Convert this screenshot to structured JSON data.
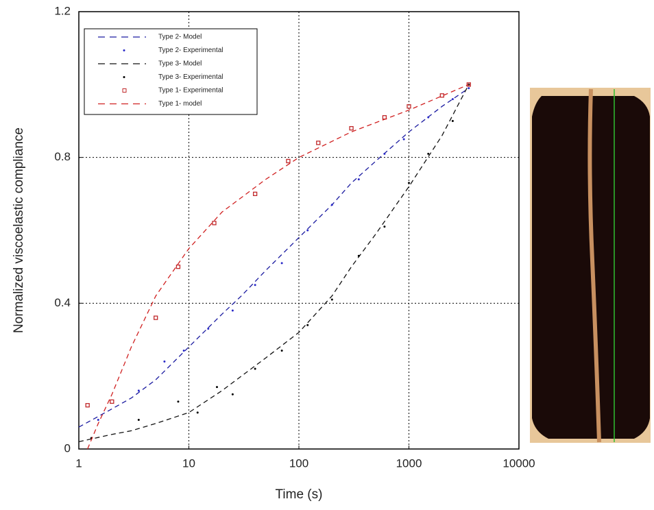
{
  "chart_data": {
    "type": "line",
    "x_label": "Time (s)",
    "y_label": "Normalized viscoelastic compliance",
    "xlim": [
      1,
      10000
    ],
    "xticks": [
      1,
      10,
      100,
      1000,
      10000
    ],
    "xscale": "log",
    "ylim": [
      0,
      1.2
    ],
    "yticks": [
      0,
      0.4,
      0.8,
      1.2
    ],
    "grid": true,
    "legend": "upper left",
    "series": [
      {
        "name": "Type 2- Model",
        "color": "#1a1aa0",
        "style": "dashed",
        "x": [
          1,
          2,
          3,
          5,
          10,
          20,
          30,
          50,
          100,
          200,
          300,
          500,
          1000,
          2000,
          3500
        ],
        "values": [
          0.06,
          0.11,
          0.14,
          0.19,
          0.28,
          0.37,
          0.42,
          0.49,
          0.58,
          0.67,
          0.73,
          0.79,
          0.87,
          0.94,
          0.99
        ]
      },
      {
        "name": "Type 2- Experimental",
        "color": "#2a2ac8",
        "style": "markers",
        "x": [
          1.5,
          3.5,
          6,
          9,
          15,
          25,
          40,
          70,
          120,
          200,
          350,
          600,
          900,
          1500,
          2500,
          3500
        ],
        "values": [
          0.08,
          0.16,
          0.24,
          0.27,
          0.33,
          0.38,
          0.45,
          0.51,
          0.6,
          0.67,
          0.74,
          0.81,
          0.85,
          0.91,
          0.96,
          0.99
        ]
      },
      {
        "name": "Type 3- Model",
        "color": "#111111",
        "style": "dashed",
        "x": [
          1,
          2,
          3,
          5,
          10,
          20,
          30,
          50,
          100,
          200,
          300,
          500,
          1000,
          2000,
          3500
        ],
        "values": [
          0.02,
          0.04,
          0.05,
          0.07,
          0.1,
          0.16,
          0.2,
          0.25,
          0.32,
          0.42,
          0.5,
          0.59,
          0.72,
          0.86,
          1.0
        ]
      },
      {
        "name": "Type 3- Experimental",
        "color": "#000000",
        "style": "markers",
        "x": [
          1.3,
          3.5,
          8,
          12,
          18,
          25,
          40,
          70,
          120,
          200,
          350,
          600,
          1000,
          1500,
          2500,
          3500
        ],
        "values": [
          0.03,
          0.08,
          0.13,
          0.1,
          0.17,
          0.15,
          0.22,
          0.27,
          0.34,
          0.41,
          0.53,
          0.61,
          0.73,
          0.81,
          0.9,
          1.0
        ]
      },
      {
        "name": "Type 1- Experimental",
        "color": "#c0282a",
        "style": "squares",
        "x": [
          1.2,
          2,
          5,
          8,
          17,
          40,
          80,
          150,
          300,
          600,
          1000,
          2000,
          3500
        ],
        "values": [
          0.12,
          0.13,
          0.36,
          0.5,
          0.62,
          0.7,
          0.79,
          0.84,
          0.88,
          0.91,
          0.94,
          0.97,
          1.0
        ]
      },
      {
        "name": "Type 1- model",
        "color": "#d02020",
        "style": "dashed",
        "x": [
          1.2,
          1.5,
          2,
          3,
          5,
          10,
          20,
          50,
          100,
          300,
          1000,
          3500
        ],
        "values": [
          0,
          0.07,
          0.15,
          0.28,
          0.42,
          0.55,
          0.65,
          0.74,
          0.8,
          0.87,
          0.93,
          1.0
        ]
      }
    ]
  }
}
